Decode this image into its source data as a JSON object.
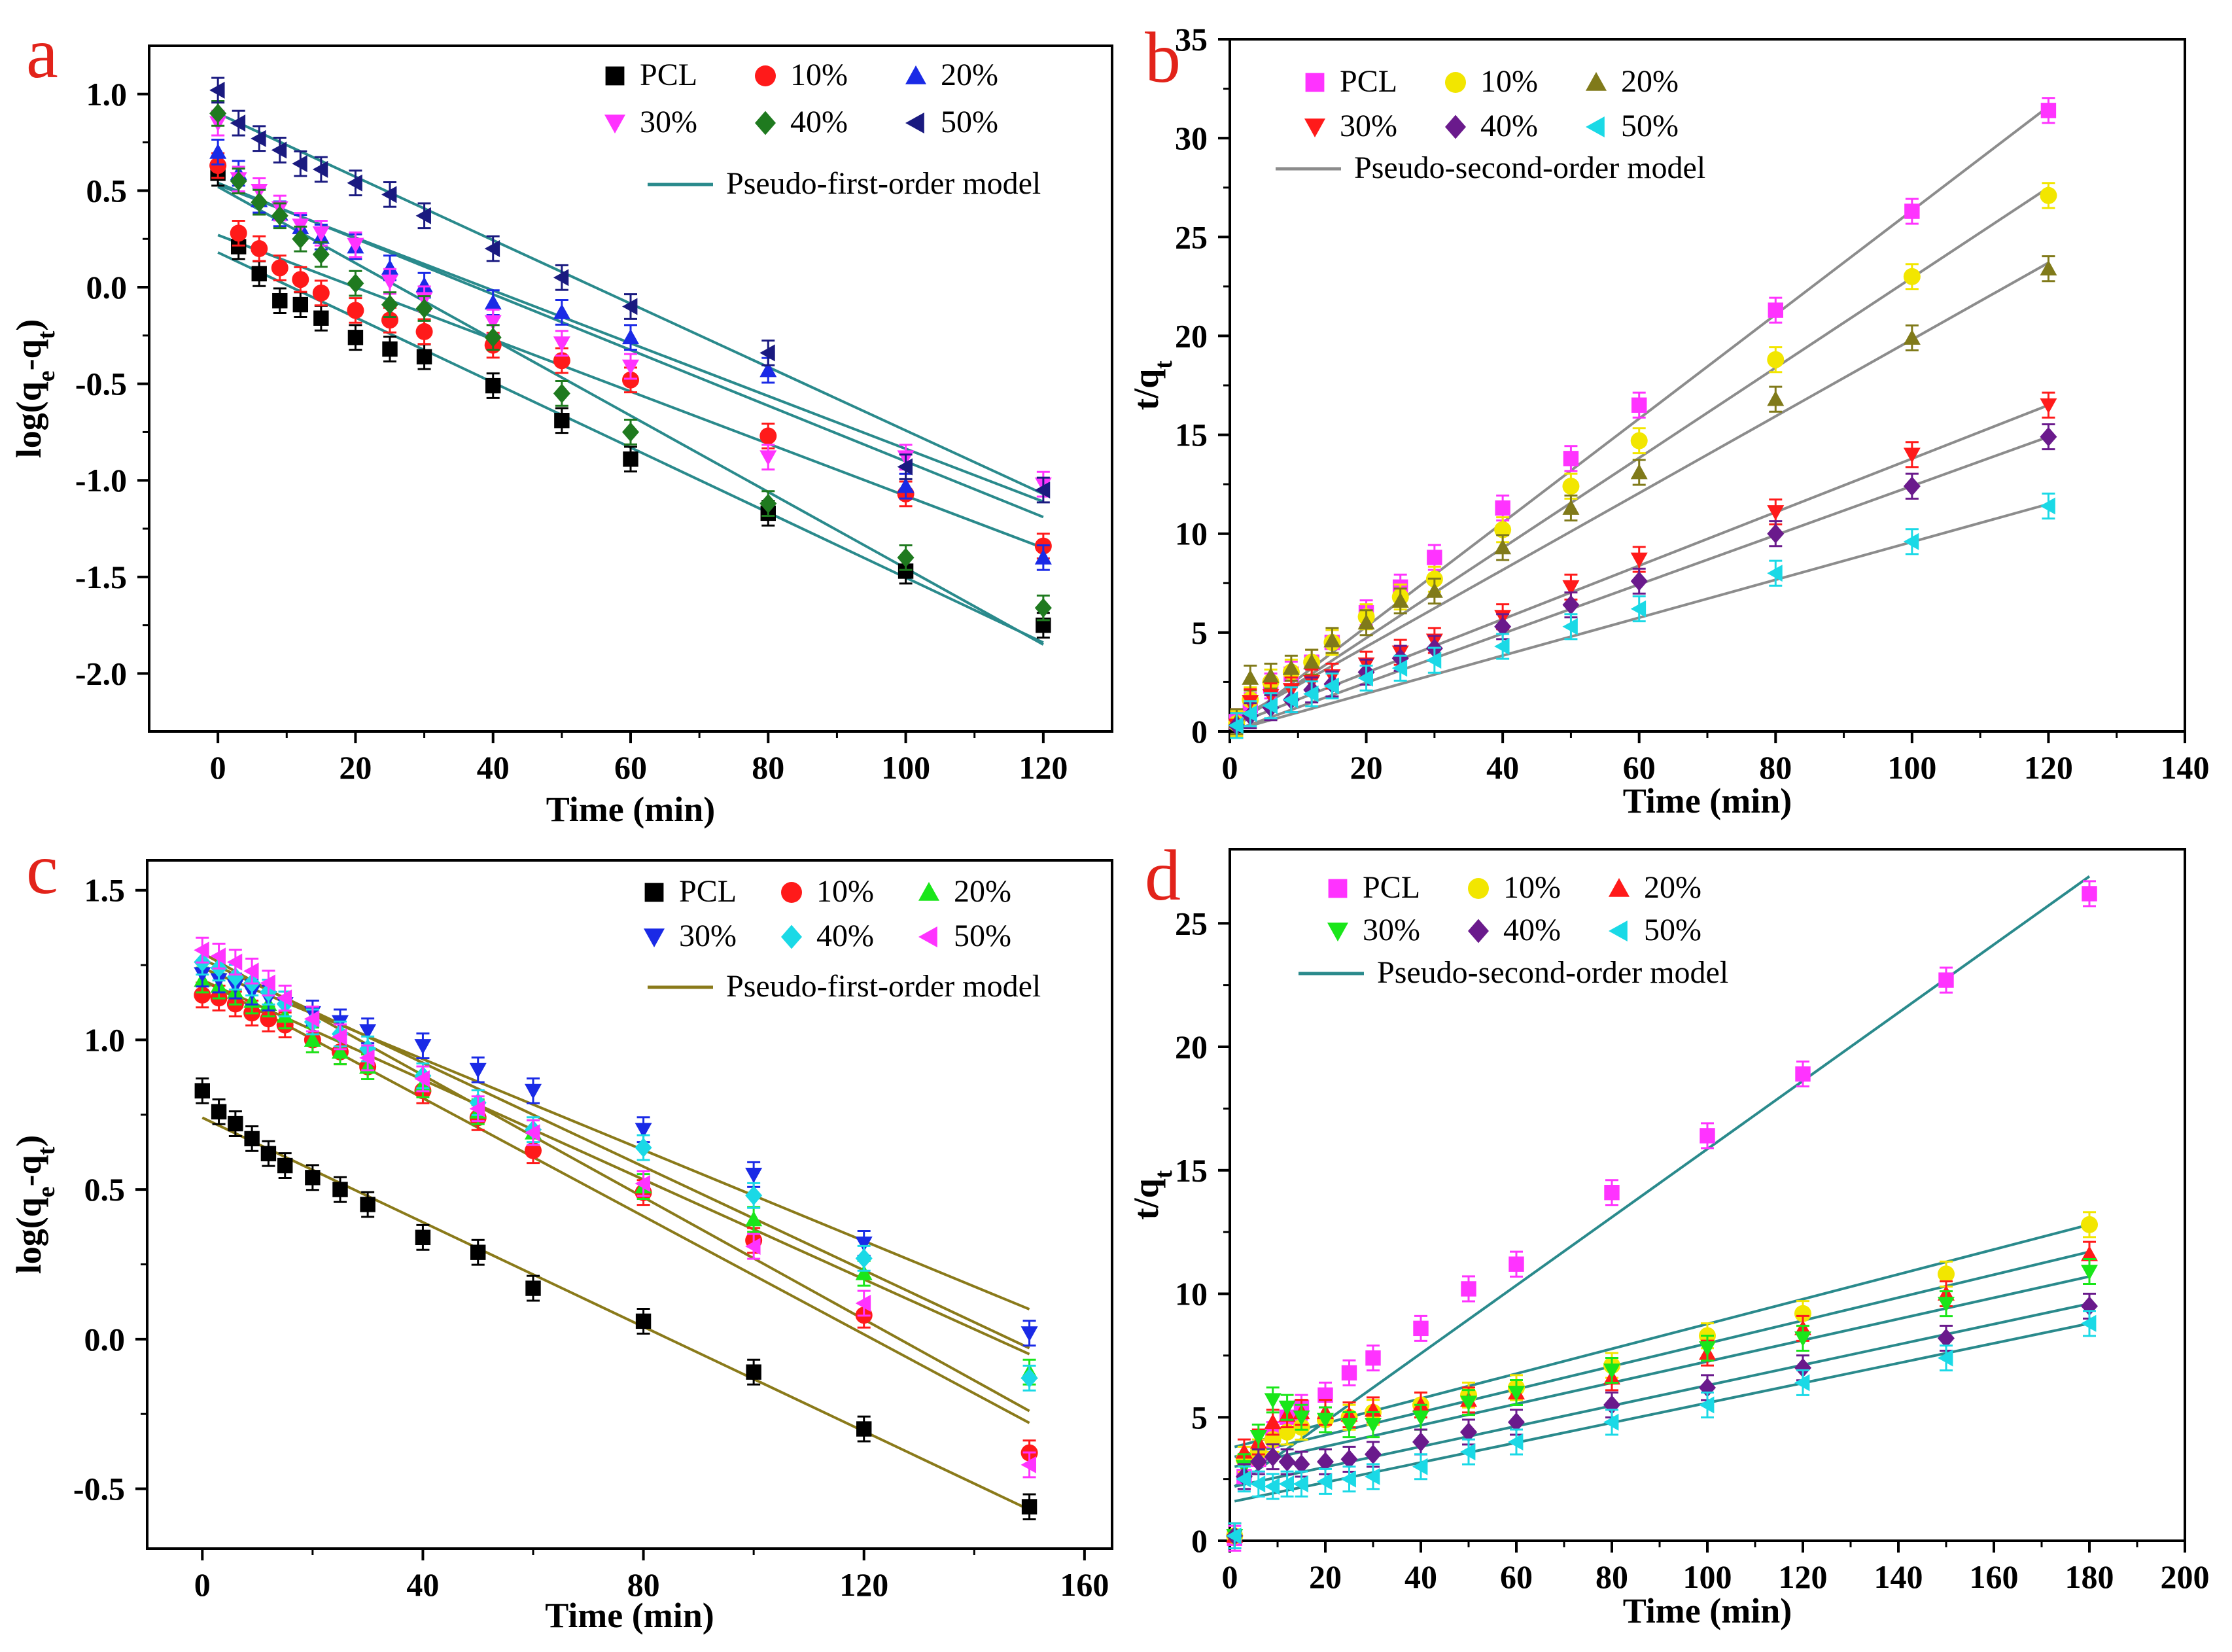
{
  "figure": {
    "panels": [
      {
        "id": "a",
        "letter": "a"
      },
      {
        "id": "b",
        "letter": "b"
      },
      {
        "id": "c",
        "letter": "c"
      },
      {
        "id": "d",
        "letter": "d"
      }
    ]
  },
  "chart_data": [
    {
      "panel": "a",
      "type": "scatter",
      "title": "",
      "xlabel": "Time (min)",
      "ylabel_parts": [
        "log(q",
        "e",
        "-q",
        "t",
        ")"
      ],
      "xlim": [
        -10,
        130
      ],
      "ylim": [
        -2.3,
        1.25
      ],
      "xticks": [
        0,
        20,
        40,
        60,
        80,
        100,
        120
      ],
      "yticks": [
        1.0,
        0.5,
        0.0,
        -0.5,
        -1.0,
        -1.5,
        -2.0
      ],
      "ytick_labels": [
        "1.0",
        "0.5",
        "0.0",
        "-0.5",
        "-1.0",
        "-1.5",
        "-2.0"
      ],
      "fit_label": "Pseudo-first-order model",
      "fit_color": "#2a8a8c",
      "legend_cols": 3,
      "x": [
        0,
        3,
        6,
        9,
        12,
        15,
        20,
        25,
        30,
        40,
        50,
        60,
        80,
        100,
        120
      ],
      "series": [
        {
          "name": "PCL",
          "marker": "square",
          "color": "#000000",
          "values": [
            0.59,
            0.21,
            0.07,
            -0.07,
            -0.09,
            -0.16,
            -0.26,
            -0.32,
            -0.36,
            -0.51,
            -0.69,
            -0.89,
            -1.17,
            -1.47,
            -1.75
          ],
          "fit": [
            0.18,
            -1.84
          ]
        },
        {
          "name": "10%",
          "marker": "circle",
          "color": "#ff1a1a",
          "values": [
            0.63,
            0.28,
            0.2,
            0.1,
            0.04,
            -0.03,
            -0.12,
            -0.17,
            -0.23,
            -0.3,
            -0.38,
            -0.48,
            -0.77,
            -1.07,
            -1.34
          ],
          "fit": [
            0.27,
            -1.35
          ]
        },
        {
          "name": "20%",
          "marker": "triangle-up",
          "color": "#1a2ae6",
          "values": [
            0.7,
            0.59,
            0.45,
            0.38,
            0.31,
            0.26,
            0.21,
            0.1,
            0.01,
            -0.08,
            -0.13,
            -0.26,
            -0.43,
            -1.03,
            -1.4
          ],
          "fit": [
            0.54,
            -1.19
          ]
        },
        {
          "name": "30%",
          "marker": "triangle-down",
          "color": "#ff33ff",
          "values": [
            0.85,
            0.56,
            0.5,
            0.41,
            0.32,
            0.28,
            0.22,
            0.03,
            -0.06,
            -0.18,
            -0.29,
            -0.41,
            -0.88,
            -0.88,
            -1.02
          ],
          "fit": [
            0.53,
            -1.11
          ]
        },
        {
          "name": "40%",
          "marker": "diamond",
          "color": "#1f7a1f",
          "values": [
            0.9,
            0.55,
            0.44,
            0.37,
            0.25,
            0.17,
            0.02,
            -0.09,
            -0.11,
            -0.26,
            -0.55,
            -0.75,
            -1.12,
            -1.4,
            -1.66
          ],
          "fit": [
            0.52,
            -1.85
          ]
        },
        {
          "name": "50%",
          "marker": "triangle-left",
          "color": "#1a1a80",
          "values": [
            1.02,
            0.85,
            0.77,
            0.71,
            0.64,
            0.61,
            0.54,
            0.48,
            0.37,
            0.2,
            0.05,
            -0.1,
            -0.34,
            -0.93,
            -1.05
          ],
          "fit": [
            0.9,
            -1.07
          ]
        }
      ]
    },
    {
      "panel": "b",
      "type": "scatter",
      "title": "",
      "xlabel": "Time (min)",
      "ylabel_parts": [
        "t/q",
        "t"
      ],
      "xlim": [
        0,
        140
      ],
      "ylim": [
        0,
        35
      ],
      "xticks": [
        0,
        20,
        40,
        60,
        80,
        100,
        120,
        140
      ],
      "yticks": [
        0,
        5,
        10,
        15,
        20,
        25,
        30,
        35
      ],
      "ytick_labels": [
        "0",
        "5",
        "10",
        "15",
        "20",
        "25",
        "30",
        "35"
      ],
      "fit_label": "Pseudo-second-order model",
      "fit_color": "#8c8c8c",
      "legend_cols": 3,
      "x": [
        1,
        3,
        6,
        9,
        12,
        15,
        20,
        25,
        30,
        40,
        50,
        60,
        80,
        100,
        120
      ],
      "series": [
        {
          "name": "PCL",
          "marker": "square",
          "color": "#ff33ff",
          "values": [
            0.5,
            1.3,
            2.3,
            2.9,
            3.5,
            4.5,
            6.0,
            7.3,
            8.8,
            11.3,
            13.8,
            16.5,
            21.3,
            26.3,
            31.4
          ],
          "fit": [
            0.3,
            31.6
          ]
        },
        {
          "name": "10%",
          "marker": "circle",
          "color": "#f2e600",
          "values": [
            0.4,
            1.6,
            2.5,
            3.0,
            3.5,
            4.5,
            5.8,
            6.8,
            7.7,
            10.2,
            12.4,
            14.7,
            18.8,
            23.0,
            27.1
          ],
          "fit": [
            0.4,
            27.5
          ]
        },
        {
          "name": "20%",
          "marker": "triangle-up",
          "color": "#807a1a",
          "values": [
            0.5,
            2.7,
            2.8,
            3.2,
            3.5,
            4.6,
            5.5,
            6.6,
            7.1,
            9.3,
            11.3,
            13.1,
            16.8,
            19.9,
            23.4
          ],
          "fit": [
            0.6,
            23.7
          ]
        },
        {
          "name": "30%",
          "marker": "triangle-down",
          "color": "#ff1a1a",
          "values": [
            0.3,
            1.5,
            1.8,
            2.1,
            2.5,
            2.8,
            3.4,
            4.0,
            4.6,
            5.8,
            7.3,
            8.7,
            11.1,
            14.0,
            16.5
          ],
          "fit": [
            0.4,
            16.5
          ]
        },
        {
          "name": "40%",
          "marker": "diamond",
          "color": "#6a1a8c",
          "values": [
            0.3,
            0.8,
            1.2,
            1.6,
            2.1,
            2.4,
            3.0,
            3.7,
            4.2,
            5.3,
            6.4,
            7.6,
            10.0,
            12.4,
            14.9
          ],
          "fit": [
            0.1,
            14.9
          ]
        },
        {
          "name": "50%",
          "marker": "triangle-left",
          "color": "#1ad9e6",
          "values": [
            0.3,
            0.9,
            1.3,
            1.6,
            1.9,
            2.3,
            2.7,
            3.2,
            3.6,
            4.3,
            5.3,
            6.2,
            8.0,
            9.6,
            11.4
          ],
          "fit": [
            0.1,
            11.5
          ]
        }
      ]
    },
    {
      "panel": "c",
      "type": "scatter",
      "title": "",
      "xlabel": "Time (min)",
      "ylabel_parts": [
        "log(q",
        "e",
        "-q",
        "t",
        ")"
      ],
      "xlim": [
        -10,
        165
      ],
      "ylim": [
        -0.7,
        1.6
      ],
      "xticks": [
        0,
        40,
        80,
        120,
        160
      ],
      "yticks": [
        1.5,
        1.0,
        0.5,
        0.0,
        -0.5
      ],
      "ytick_labels": [
        "1.5",
        "1.0",
        "0.5",
        "0.0",
        "-0.5"
      ],
      "fit_label": "Pseudo-first-order model",
      "fit_color": "#8a7a1a",
      "legend_cols": 3,
      "x": [
        0,
        3,
        6,
        9,
        12,
        15,
        20,
        25,
        30,
        40,
        50,
        60,
        80,
        100,
        120,
        150
      ],
      "series": [
        {
          "name": "PCL",
          "marker": "square",
          "color": "#000000",
          "values": [
            0.83,
            0.76,
            0.72,
            0.67,
            0.62,
            0.58,
            0.54,
            0.5,
            0.45,
            0.34,
            0.29,
            0.17,
            0.06,
            -0.11,
            -0.3,
            -0.56
          ],
          "fit": [
            0.74,
            -0.57
          ]
        },
        {
          "name": "10%",
          "marker": "circle",
          "color": "#ff1a1a",
          "values": [
            1.15,
            1.14,
            1.12,
            1.09,
            1.07,
            1.05,
            1.0,
            0.96,
            0.91,
            0.83,
            0.74,
            0.63,
            0.49,
            0.33,
            0.08,
            -0.38
          ],
          "fit": [
            1.2,
            -0.28
          ]
        },
        {
          "name": "20%",
          "marker": "triangle-up",
          "color": "#1ae61a",
          "values": [
            1.2,
            1.18,
            1.16,
            1.13,
            1.12,
            1.08,
            1.0,
            0.96,
            0.91,
            0.85,
            0.76,
            0.69,
            0.51,
            0.4,
            0.22,
            -0.11
          ],
          "fit": [
            1.2,
            -0.05
          ]
        },
        {
          "name": "30%",
          "marker": "triangle-down",
          "color": "#1a2ae6",
          "values": [
            1.22,
            1.2,
            1.18,
            1.16,
            1.14,
            1.12,
            1.09,
            1.06,
            1.03,
            0.98,
            0.9,
            0.83,
            0.7,
            0.55,
            0.32,
            0.02
          ],
          "fit": [
            1.24,
            0.1
          ]
        },
        {
          "name": "40%",
          "marker": "diamond",
          "color": "#1ad9e6",
          "values": [
            1.26,
            1.24,
            1.21,
            1.19,
            1.16,
            1.12,
            1.06,
            1.02,
            0.97,
            0.88,
            0.79,
            0.7,
            0.64,
            0.48,
            0.27,
            -0.13
          ],
          "fit": [
            1.27,
            -0.03
          ]
        },
        {
          "name": "50%",
          "marker": "triangle-left",
          "color": "#ff33ff",
          "values": [
            1.3,
            1.28,
            1.26,
            1.23,
            1.19,
            1.14,
            1.07,
            1.01,
            0.94,
            0.87,
            0.77,
            0.69,
            0.52,
            0.31,
            0.12,
            -0.42
          ],
          "fit": [
            1.29,
            -0.24
          ]
        }
      ]
    },
    {
      "panel": "d",
      "type": "scatter",
      "title": "",
      "xlabel": "Time (min)",
      "ylabel_parts": [
        "t/q",
        "t"
      ],
      "xlim": [
        0,
        200
      ],
      "ylim": [
        0,
        28
      ],
      "xticks": [
        0,
        20,
        40,
        60,
        80,
        100,
        120,
        140,
        160,
        180,
        200
      ],
      "yticks": [
        0,
        5,
        10,
        15,
        20,
        25
      ],
      "ytick_labels": [
        "0",
        "5",
        "10",
        "15",
        "20",
        "25"
      ],
      "fit_label": "Pseudo-second-order model",
      "fit_color": "#2a8a8c",
      "legend_cols": 3,
      "x": [
        1,
        3,
        6,
        9,
        12,
        15,
        20,
        25,
        30,
        40,
        50,
        60,
        80,
        100,
        120,
        150,
        180
      ],
      "series": [
        {
          "name": "PCL",
          "marker": "square",
          "color": "#ff33ff",
          "values": [
            0.1,
            2.6,
            3.3,
            4.3,
            5.0,
            5.4,
            5.9,
            6.8,
            7.4,
            8.6,
            10.2,
            11.2,
            14.1,
            16.4,
            18.9,
            22.7,
            26.2
          ],
          "fit": [
            2.2,
            26.9
          ]
        },
        {
          "name": "10%",
          "marker": "circle",
          "color": "#f2e600",
          "values": [
            0.2,
            3.3,
            3.6,
            4.1,
            4.4,
            4.6,
            4.9,
            5.0,
            5.2,
            5.5,
            5.9,
            6.2,
            7.1,
            8.3,
            9.2,
            10.8,
            12.8
          ],
          "fit": [
            3.8,
            12.8
          ]
        },
        {
          "name": "20%",
          "marker": "triangle-up",
          "color": "#ff1a1a",
          "values": [
            0.2,
            3.6,
            4.0,
            4.8,
            5.1,
            5.2,
            5.2,
            5.1,
            5.3,
            5.5,
            5.7,
            6.0,
            6.6,
            7.6,
            8.6,
            10.0,
            11.6
          ],
          "fit": [
            3.4,
            11.7
          ]
        },
        {
          "name": "30%",
          "marker": "triangle-down",
          "color": "#1ae61a",
          "values": [
            0.2,
            3.0,
            4.2,
            5.7,
            5.4,
            5.0,
            4.9,
            4.7,
            4.7,
            5.0,
            5.6,
            6.0,
            6.9,
            7.8,
            8.2,
            9.6,
            10.9
          ],
          "fit": [
            3.0,
            10.7
          ]
        },
        {
          "name": "40%",
          "marker": "diamond",
          "color": "#6a1a8c",
          "values": [
            0.2,
            2.6,
            3.2,
            3.4,
            3.2,
            3.1,
            3.2,
            3.3,
            3.5,
            4.0,
            4.4,
            4.8,
            5.5,
            6.2,
            7.0,
            8.2,
            9.5
          ],
          "fit": [
            2.2,
            9.6
          ]
        },
        {
          "name": "50%",
          "marker": "triangle-left",
          "color": "#1ad9e6",
          "values": [
            0.2,
            2.5,
            2.3,
            2.2,
            2.3,
            2.3,
            2.4,
            2.5,
            2.6,
            3.0,
            3.6,
            4.0,
            4.8,
            5.5,
            6.4,
            7.4,
            8.8
          ],
          "fit": [
            1.6,
            8.8
          ]
        }
      ]
    }
  ]
}
